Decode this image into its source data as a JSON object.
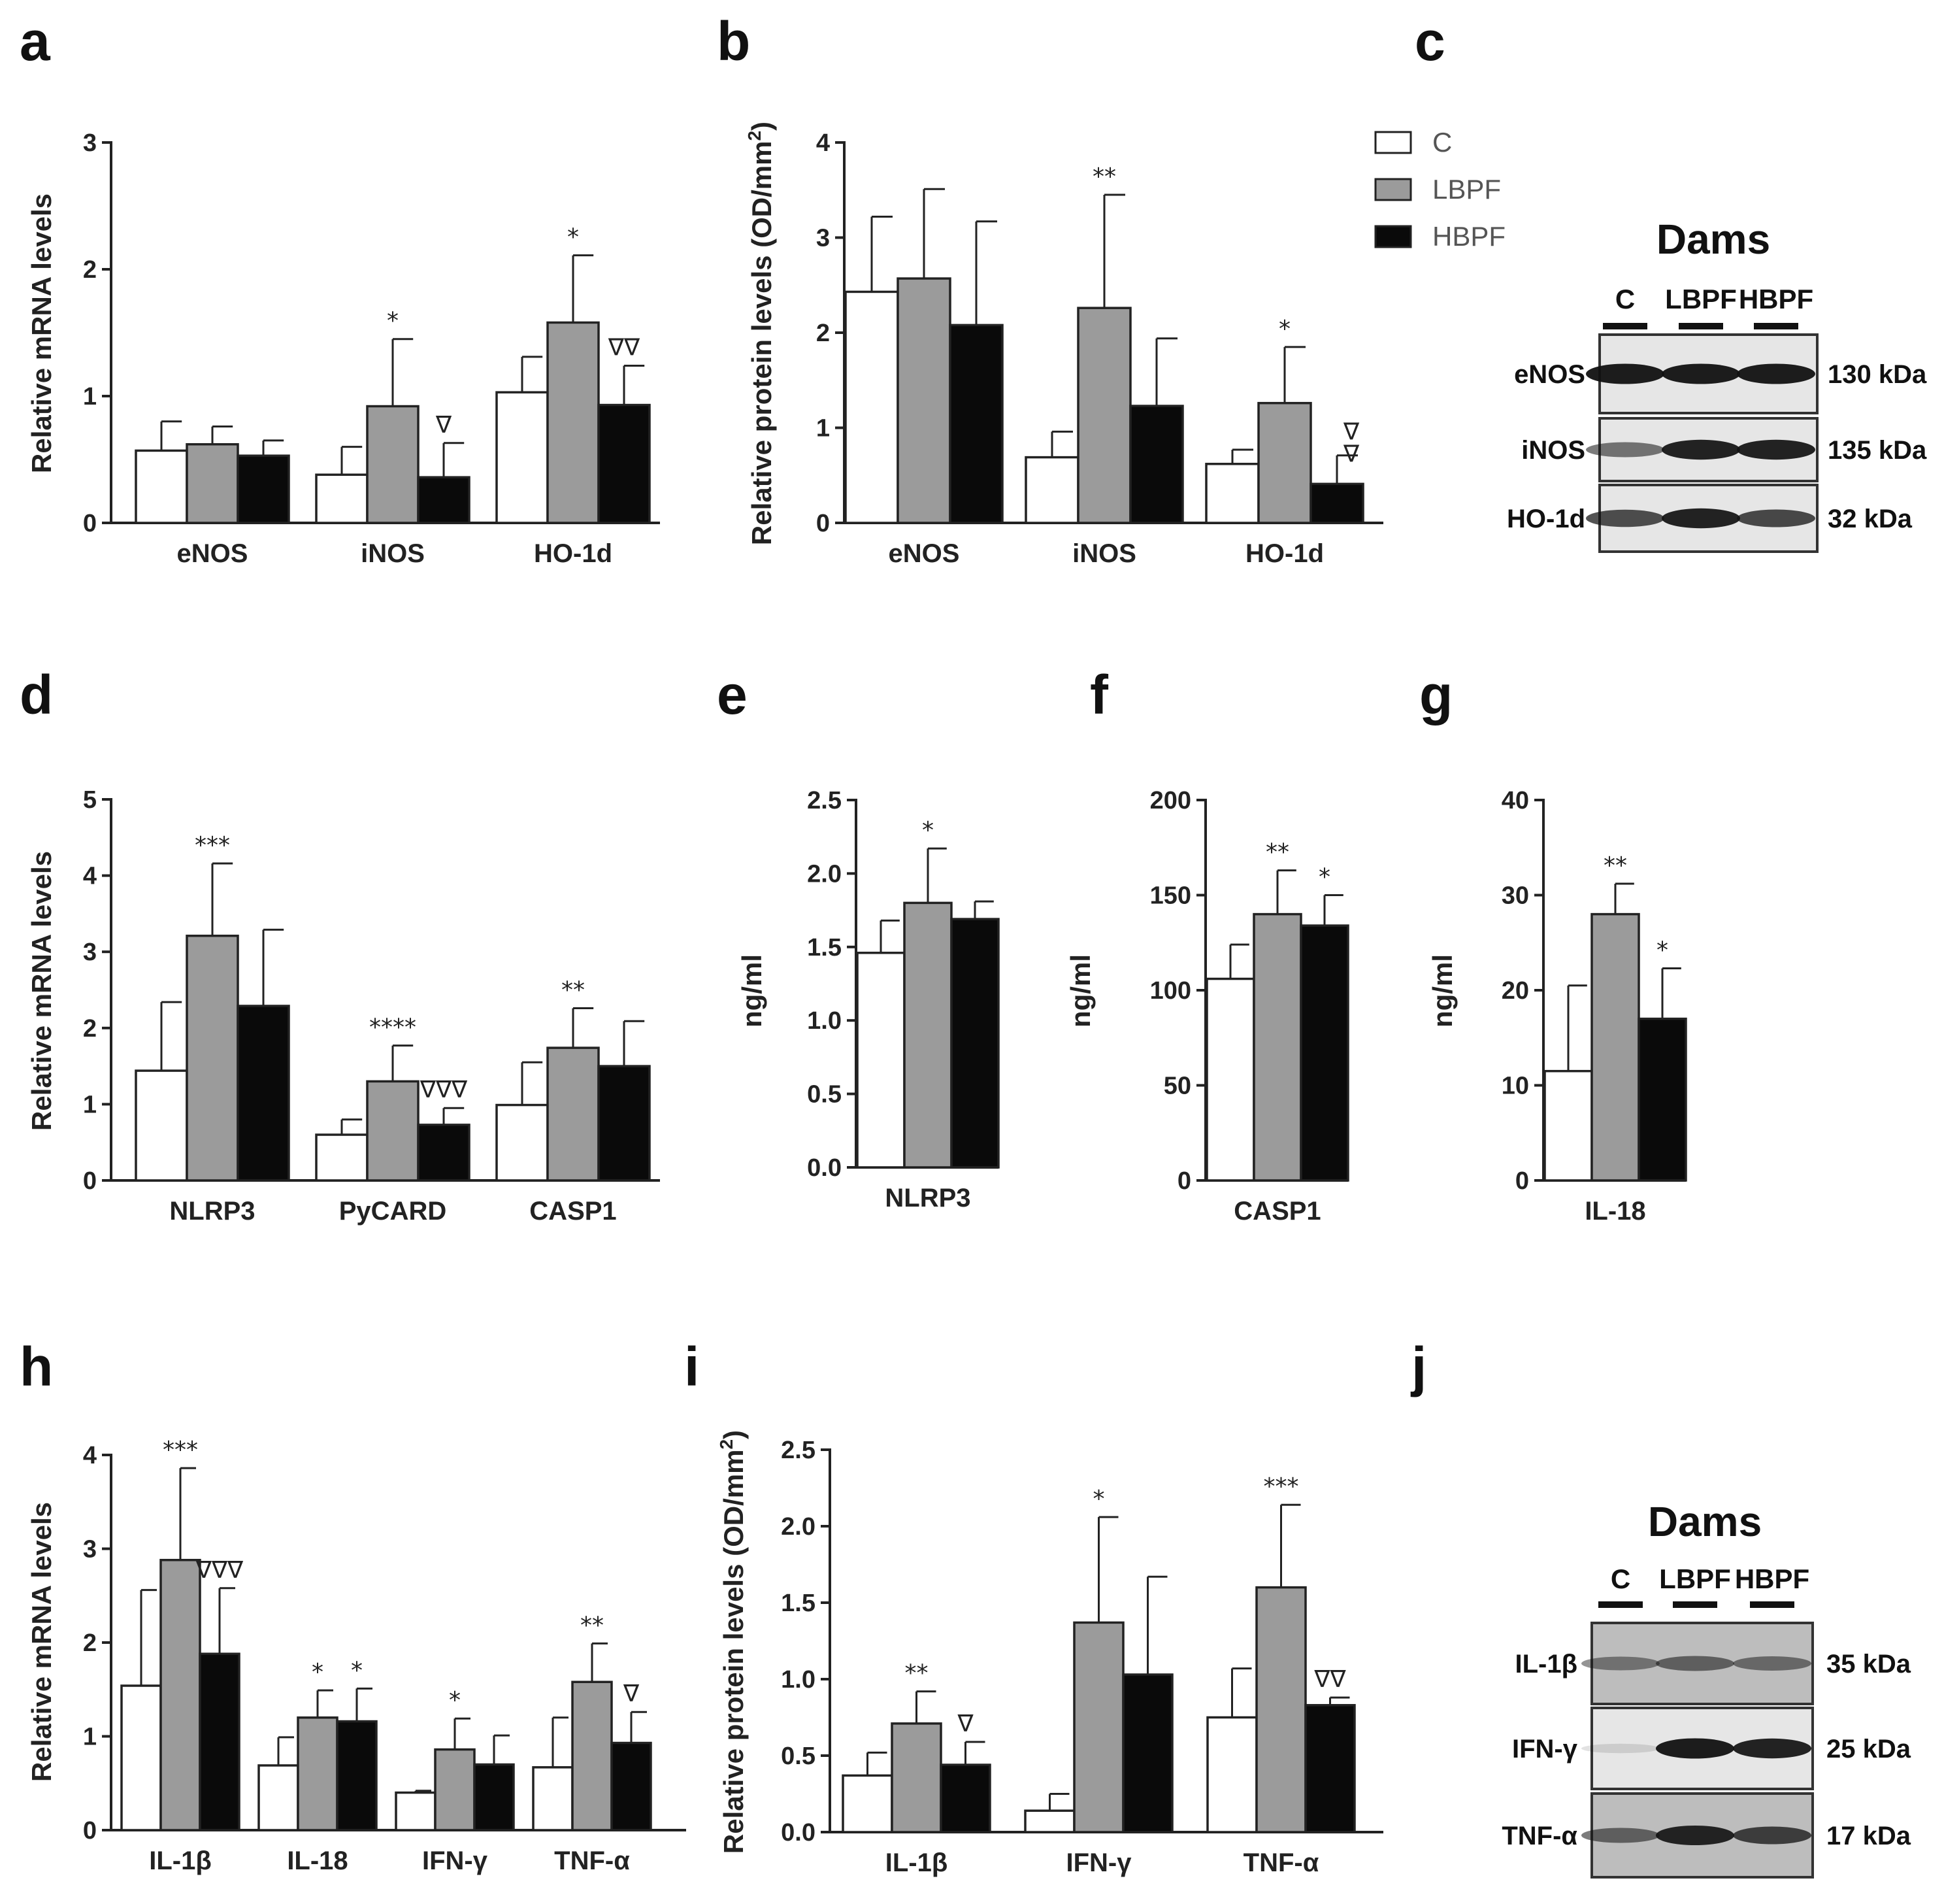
{
  "colors": {
    "C": "#ffffff",
    "LBPF": "#9b9b9b",
    "HBPF": "#0a0a0a",
    "axis": "#222222"
  },
  "legend": {
    "entries": [
      "C",
      "LBPF",
      "HBPF"
    ]
  },
  "chart_data": [
    {
      "panel": "a",
      "type": "bar",
      "title": "",
      "xlabel": "",
      "ylabel": "Relative mRNA levels",
      "ylim": [
        0,
        3
      ],
      "yticks": [
        "0",
        "1",
        "2",
        "3"
      ],
      "categories": [
        "eNOS",
        "iNOS",
        "HO-1d"
      ],
      "series": [
        {
          "name": "C",
          "values": [
            0.57,
            0.38,
            1.03
          ],
          "errors": [
            0.23,
            0.22,
            0.28
          ]
        },
        {
          "name": "LBPF",
          "values": [
            0.62,
            0.92,
            1.58
          ],
          "errors": [
            0.14,
            0.53,
            0.53
          ]
        },
        {
          "name": "HBPF",
          "values": [
            0.53,
            0.36,
            0.93
          ],
          "errors": [
            0.12,
            0.27,
            0.31
          ]
        }
      ],
      "annotations": [
        {
          "cat": 1,
          "series": 1,
          "text": "*"
        },
        {
          "cat": 1,
          "series": 2,
          "text": "∇"
        },
        {
          "cat": 2,
          "series": 1,
          "text": "*"
        },
        {
          "cat": 2,
          "series": 2,
          "text": "∇∇"
        }
      ]
    },
    {
      "panel": "b",
      "type": "bar",
      "title": "",
      "xlabel": "",
      "ylabel": "Relative protein levels (OD/mm²)",
      "ylim": [
        0,
        4
      ],
      "yticks": [
        "0",
        "1",
        "2",
        "3",
        "4"
      ],
      "categories": [
        "eNOS",
        "iNOS",
        "HO-1d"
      ],
      "series": [
        {
          "name": "C",
          "values": [
            2.43,
            0.69,
            0.62
          ],
          "errors": [
            0.79,
            0.27,
            0.15
          ]
        },
        {
          "name": "LBPF",
          "values": [
            2.57,
            2.26,
            1.26
          ],
          "errors": [
            0.94,
            1.19,
            0.59
          ]
        },
        {
          "name": "HBPF",
          "values": [
            2.08,
            1.23,
            0.41
          ],
          "errors": [
            1.09,
            0.71,
            0.3
          ]
        }
      ],
      "annotations": [
        {
          "cat": 1,
          "series": 1,
          "text": "**"
        },
        {
          "cat": 2,
          "series": 1,
          "text": "*"
        },
        {
          "cat": 2,
          "series": 2,
          "text": "∇∇",
          "stack": true
        }
      ]
    },
    {
      "panel": "d",
      "type": "bar",
      "title": "",
      "xlabel": "",
      "ylabel": "Relative mRNA levels",
      "ylim": [
        0,
        5
      ],
      "yticks": [
        "0",
        "1",
        "2",
        "3",
        "4",
        "5"
      ],
      "categories": [
        "NLRP3",
        "PyCARD",
        "CASP1"
      ],
      "series": [
        {
          "name": "C",
          "values": [
            1.44,
            0.6,
            0.99
          ],
          "errors": [
            0.9,
            0.2,
            0.56
          ]
        },
        {
          "name": "LBPF",
          "values": [
            3.21,
            1.3,
            1.74
          ],
          "errors": [
            0.95,
            0.47,
            0.52
          ]
        },
        {
          "name": "HBPF",
          "values": [
            2.29,
            0.73,
            1.5
          ],
          "errors": [
            1.0,
            0.22,
            0.59
          ]
        }
      ],
      "annotations": [
        {
          "cat": 0,
          "series": 1,
          "text": "***"
        },
        {
          "cat": 1,
          "series": 1,
          "text": "****"
        },
        {
          "cat": 1,
          "series": 2,
          "text": "∇∇∇"
        },
        {
          "cat": 2,
          "series": 1,
          "text": "**"
        }
      ]
    },
    {
      "panel": "e",
      "type": "bar",
      "title": "",
      "xlabel": "",
      "ylabel": "ng/ml",
      "ylim": [
        0,
        2.5
      ],
      "yticks": [
        "0.0",
        "0.5",
        "1.0",
        "1.5",
        "2.0",
        "2.5"
      ],
      "categories": [
        "NLRP3"
      ],
      "series": [
        {
          "name": "C",
          "values": [
            1.46
          ],
          "errors": [
            0.22
          ]
        },
        {
          "name": "LBPF",
          "values": [
            1.8
          ],
          "errors": [
            0.37
          ]
        },
        {
          "name": "HBPF",
          "values": [
            1.69
          ],
          "errors": [
            0.12
          ]
        }
      ],
      "annotations": [
        {
          "cat": 0,
          "series": 1,
          "text": "*"
        }
      ]
    },
    {
      "panel": "f",
      "type": "bar",
      "title": "",
      "xlabel": "",
      "ylabel": "ng/ml",
      "ylim": [
        0,
        200
      ],
      "yticks": [
        "0",
        "50",
        "100",
        "150",
        "200"
      ],
      "categories": [
        "CASP1"
      ],
      "series": [
        {
          "name": "C",
          "values": [
            106
          ],
          "errors": [
            18
          ]
        },
        {
          "name": "LBPF",
          "values": [
            140
          ],
          "errors": [
            23
          ]
        },
        {
          "name": "HBPF",
          "values": [
            134
          ],
          "errors": [
            16
          ]
        }
      ],
      "annotations": [
        {
          "cat": 0,
          "series": 1,
          "text": "**"
        },
        {
          "cat": 0,
          "series": 2,
          "text": "*"
        }
      ]
    },
    {
      "panel": "g",
      "type": "bar",
      "title": "",
      "xlabel": "",
      "ylabel": "ng/ml",
      "ylim": [
        0,
        40
      ],
      "yticks": [
        "0",
        "10",
        "20",
        "30",
        "40"
      ],
      "categories": [
        "IL-18"
      ],
      "series": [
        {
          "name": "C",
          "values": [
            11.5
          ],
          "errors": [
            9.0
          ]
        },
        {
          "name": "LBPF",
          "values": [
            28.0
          ],
          "errors": [
            3.2
          ]
        },
        {
          "name": "HBPF",
          "values": [
            17.0
          ],
          "errors": [
            5.3
          ]
        }
      ],
      "annotations": [
        {
          "cat": 0,
          "series": 1,
          "text": "**"
        },
        {
          "cat": 0,
          "series": 2,
          "text": "*"
        }
      ]
    },
    {
      "panel": "h",
      "type": "bar",
      "title": "",
      "xlabel": "",
      "ylabel": "Relative mRNA levels",
      "ylim": [
        0,
        4
      ],
      "yticks": [
        "0",
        "1",
        "2",
        "3",
        "4"
      ],
      "categories": [
        "IL-1β",
        "IL-18",
        "IFN-γ",
        "TNF-α"
      ],
      "series": [
        {
          "name": "C",
          "values": [
            1.54,
            0.69,
            0.4,
            0.67
          ],
          "errors": [
            1.02,
            0.3,
            0.02,
            0.53
          ]
        },
        {
          "name": "LBPF",
          "values": [
            2.88,
            1.2,
            0.86,
            1.58
          ],
          "errors": [
            0.98,
            0.29,
            0.33,
            0.41
          ]
        },
        {
          "name": "HBPF",
          "values": [
            1.88,
            1.16,
            0.7,
            0.93
          ],
          "errors": [
            0.7,
            0.35,
            0.31,
            0.33
          ]
        }
      ],
      "annotations": [
        {
          "cat": 0,
          "series": 1,
          "text": "***"
        },
        {
          "cat": 0,
          "series": 2,
          "text": "∇∇∇"
        },
        {
          "cat": 1,
          "series": 1,
          "text": "*"
        },
        {
          "cat": 1,
          "series": 2,
          "text": "*"
        },
        {
          "cat": 2,
          "series": 1,
          "text": "*"
        },
        {
          "cat": 3,
          "series": 1,
          "text": "**"
        },
        {
          "cat": 3,
          "series": 2,
          "text": "∇"
        }
      ]
    },
    {
      "panel": "i",
      "type": "bar",
      "title": "",
      "xlabel": "",
      "ylabel": "Relative protein levels (OD/mm²)",
      "ylim": [
        0,
        2.5
      ],
      "yticks": [
        "0.0",
        "0.5",
        "1.0",
        "1.5",
        "2.0",
        "2.5"
      ],
      "categories": [
        "IL-1β",
        "IFN-γ",
        "TNF-α"
      ],
      "series": [
        {
          "name": "C",
          "values": [
            0.37,
            0.14,
            0.75
          ],
          "errors": [
            0.15,
            0.11,
            0.32
          ]
        },
        {
          "name": "LBPF",
          "values": [
            0.71,
            1.37,
            1.6
          ],
          "errors": [
            0.21,
            0.69,
            0.54
          ]
        },
        {
          "name": "HBPF",
          "values": [
            0.44,
            1.03,
            0.83
          ],
          "errors": [
            0.15,
            0.64,
            0.05
          ]
        }
      ],
      "annotations": [
        {
          "cat": 0,
          "series": 1,
          "text": "**"
        },
        {
          "cat": 0,
          "series": 2,
          "text": "∇"
        },
        {
          "cat": 1,
          "series": 1,
          "text": "*"
        },
        {
          "cat": 2,
          "series": 1,
          "text": "***"
        },
        {
          "cat": 2,
          "series": 2,
          "text": "∇∇"
        }
      ]
    }
  ],
  "blots": [
    {
      "panel": "c",
      "title": "Dams",
      "lanes": [
        "C",
        "LBPF",
        "HBPF"
      ],
      "rows": [
        {
          "protein": "eNOS",
          "kda": "130 kDa",
          "intensities": [
            0.95,
            0.95,
            0.95
          ]
        },
        {
          "protein": "iNOS",
          "kda": "135 kDa",
          "intensities": [
            0.55,
            0.92,
            0.92
          ]
        },
        {
          "protein": "HO-1d",
          "kda": "32 kDa",
          "intensities": [
            0.72,
            0.92,
            0.75
          ]
        }
      ]
    },
    {
      "panel": "j",
      "title": "Dams",
      "lanes": [
        "C",
        "LBPF",
        "HBPF"
      ],
      "rows": [
        {
          "protein": "IL-1β",
          "kda": "35 kDa",
          "intensities": [
            0.45,
            0.55,
            0.5
          ]
        },
        {
          "protein": "IFN-γ",
          "kda": "25 kDa",
          "intensities": [
            0.12,
            0.95,
            0.92
          ]
        },
        {
          "protein": "TNF-α",
          "kda": "17 kDa",
          "intensities": [
            0.55,
            0.9,
            0.75
          ]
        }
      ]
    }
  ]
}
